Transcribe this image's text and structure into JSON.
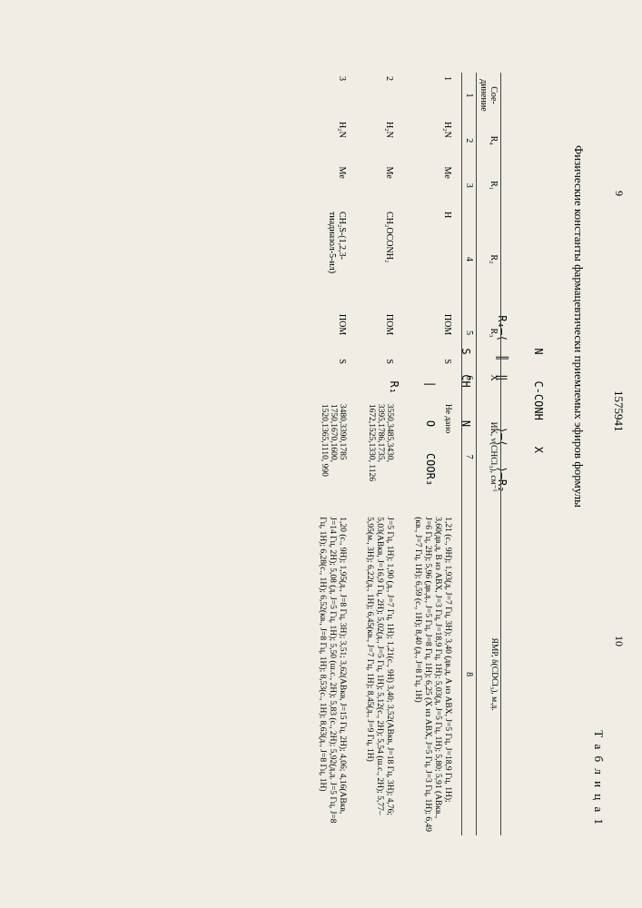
{
  "page_left": "9",
  "page_right": "10",
  "doc_number": "1575941",
  "table_label": "Т а б л и ц а 1",
  "title": "Физические константы фармацевтически приемлемых эфиров формулы",
  "formula_lines": [
    "      N    C-CONH    X",
    " R₄—⟨  ║  ‖       ⟩—⟨   ⟩—R₂",
    "      S   CH     N",
    "           |     O    COOR₃",
    "           R₁"
  ],
  "columns": {
    "c1": "Сое-\nдинение",
    "c2": "R₄",
    "c3": "R₁",
    "c4": "R₂",
    "c5": "R₃",
    "c6": "X",
    "c7": "ИК, ν(CHCl₃), см⁻¹",
    "c8": "ЯМР, δ(CDCl₃), м.д."
  },
  "colnums": {
    "n1": "1",
    "n2": "2",
    "n3": "3",
    "n4": "4",
    "n5": "5",
    "n6": "6",
    "n7": "7",
    "n8": "8"
  },
  "rows": [
    {
      "id": "1",
      "r4": "H₂N",
      "r1": "Me",
      "r2": "H",
      "r3": "ПОМ",
      "x": "S",
      "ir": "Не дано",
      "nmr": "1,21 (с., 9H); 1,93(д, J=7 Гц, 3H); 3,40 (дв.д, A из ABX, J=5 Гц, J=18,9 Гц, 1H); 3,60(дв.д, B из ABX, J=3 Гц, J=18,9 Гц, 1H); 5,03(д, J=5 Гц, 1H); 5,80; 5,91 (ABкв., J=6 Гц, 2H); 5,96 (дв.д., J=5 Гц, J=8 Гц, 1H); 6,25 (X из ABX, J=5 Гц, J=3 Гц, 1H); 6,49 (кв., J=7 Гц, 1H); 6,59 (с., 1H); 8,40 (д., J=8 Гц, 1H)"
    },
    {
      "id": "2",
      "r4": "H₂N",
      "r1": "Me",
      "r2": "CH₂OCONH₂",
      "r3": "ПОМ",
      "x": "S",
      "ir": "3550,3485,3430, 3395,1786,1735, 1672,1525,1330, 1126",
      "nmr": "J=5 Гц, 1H); 1,90 (д., J=7 Гц, 1H); 1,21(с., 9H)  3,40; 3,52(ABкв, J=18 Гц, 3H); 4,76; 5,03(ABкв, J=16,9 Гц, 2H); 5,02(д., J=5 Гц, 1H); 5,12(с., 2H); 5,54 (ш.с., 2H); 5,77–5,95(м., 3H); 6,22(д., 1H); 6,45(кв., J=7 Гц, 1H); 8,45(д., J=9 Гц, 1H)"
    },
    {
      "id": "3",
      "r4": "H₂N",
      "r1": "Me",
      "r2": "CH₂S-(1,2,3-тиадиазол-5-ил)",
      "r3": "ПОМ",
      "x": "S",
      "ir": "3480,3390,1785 1750,1670,1600, 1520,1365,1110, 990",
      "nmr": "1,20 (с., 9H); 1,95(д., J=8 Гц, 3H); 3,51; 3,62(ABкв, J=15 Гц, 2H); 4,06; 4,16(ABкв, J=14 Гц, 2H); 5,08 (д, J=5 Гц, 1H); 5,50 (ш.с., 2H); 5,83 (с., 2H); 5,92(д.д. J=5 Гц, J=8 Гц, 1H); 6,28(с., 1H); 6,52(кв., J=8 Гц, 1H); 8,53(с., 1H); 8,63(д., J=8 Гц, 1H)"
    }
  ]
}
